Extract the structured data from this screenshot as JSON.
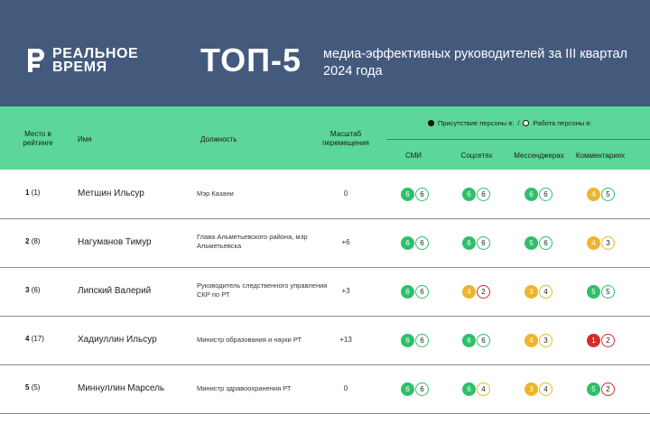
{
  "header": {
    "logo_line1": "РЕАЛЬНОЕ",
    "logo_line2": "ВРЕМЯ",
    "top_title": "ТОП-5",
    "subtitle": "медиа-эффективных руководителей за III квартал 2024 года"
  },
  "columns": {
    "rank": "Место в рейтинге",
    "name": "Имя",
    "position": "Должность",
    "scale": "Масштаб перемещения",
    "legend_presence": "Присутствие персоны в:",
    "legend_sep": "/",
    "legend_work": "Работа персоны в:",
    "media": [
      "СМИ",
      "Соцсетях",
      "Мессенджерах",
      "Комментариях"
    ]
  },
  "colors": {
    "header_bg": "#435a7d",
    "band_bg": "#5cd69a",
    "green": "#2fbf6a",
    "yellow": "#f0b429",
    "red": "#d62b2b"
  },
  "rows": [
    {
      "rank": "1",
      "prev": "(1)",
      "name": "Метшин Ильсур",
      "position": "Мэр Казани",
      "scale": "0",
      "scores": [
        [
          "6",
          "6"
        ],
        [
          "6",
          "6"
        ],
        [
          "6",
          "6"
        ],
        [
          "4",
          "5"
        ]
      ]
    },
    {
      "rank": "2",
      "prev": "(8)",
      "name": "Нагуманов Тимур",
      "position": "Глава Альметьевского района, мэр Альметьевска",
      "scale": "+6",
      "scores": [
        [
          "6",
          "6"
        ],
        [
          "6",
          "6"
        ],
        [
          "5",
          "6"
        ],
        [
          "4",
          "3"
        ]
      ]
    },
    {
      "rank": "3",
      "prev": "(6)",
      "name": "Липский Валерий",
      "position": "Руководитель следственного управления СКР по РТ",
      "scale": "+3",
      "scores": [
        [
          "6",
          "6"
        ],
        [
          "4",
          "2"
        ],
        [
          "3",
          "4"
        ],
        [
          "5",
          "5"
        ]
      ]
    },
    {
      "rank": "4",
      "prev": "(17)",
      "name": "Хадиуллин Ильсур",
      "position": "Министр образования и науки РТ",
      "scale": "+13",
      "scores": [
        [
          "6",
          "6"
        ],
        [
          "6",
          "6"
        ],
        [
          "4",
          "3"
        ],
        [
          "1",
          "2"
        ]
      ]
    },
    {
      "rank": "5",
      "prev": "(5)",
      "name": "Миннуллин Марсель",
      "position": "Министр здравоохранения РТ",
      "scale": "0",
      "scores": [
        [
          "6",
          "6"
        ],
        [
          "6",
          "4"
        ],
        [
          "3",
          "4"
        ],
        [
          "5",
          "2"
        ]
      ]
    }
  ]
}
